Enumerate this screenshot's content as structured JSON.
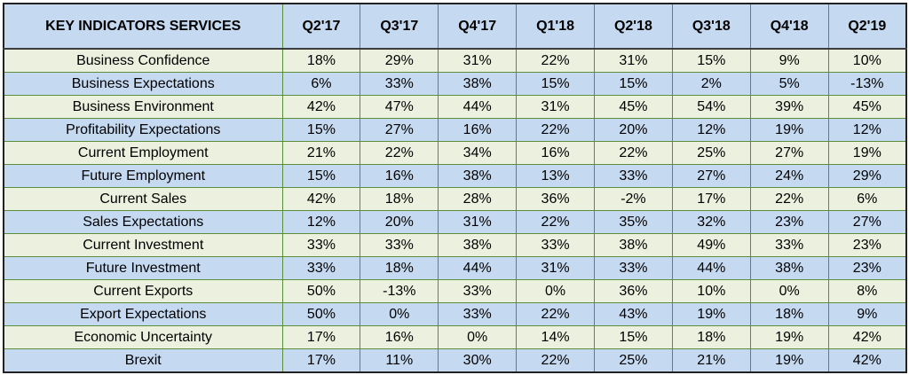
{
  "chart_data": {
    "type": "table",
    "header": [
      "KEY INDICATORS SERVICES",
      "Q2'17",
      "Q3'17",
      "Q4'17",
      "Q1'18",
      "Q2'18",
      "Q3'18",
      "Q4'18",
      "Q2'19"
    ],
    "rows": [
      {
        "label": "Business Confidence",
        "values": [
          "18%",
          "29%",
          "31%",
          "22%",
          "31%",
          "15%",
          "9%",
          "10%"
        ]
      },
      {
        "label": "Business Expectations",
        "values": [
          "6%",
          "33%",
          "38%",
          "15%",
          "15%",
          "2%",
          "5%",
          "-13%"
        ]
      },
      {
        "label": "Business Environment",
        "values": [
          "42%",
          "47%",
          "44%",
          "31%",
          "45%",
          "54%",
          "39%",
          "45%"
        ]
      },
      {
        "label": "Profitability Expectations",
        "values": [
          "15%",
          "27%",
          "16%",
          "22%",
          "20%",
          "12%",
          "19%",
          "12%"
        ]
      },
      {
        "label": "Current Employment",
        "values": [
          "21%",
          "22%",
          "34%",
          "16%",
          "22%",
          "25%",
          "27%",
          "19%"
        ]
      },
      {
        "label": "Future Employment",
        "values": [
          "15%",
          "16%",
          "38%",
          "13%",
          "33%",
          "27%",
          "24%",
          "29%"
        ]
      },
      {
        "label": "Current Sales",
        "values": [
          "42%",
          "18%",
          "28%",
          "36%",
          "-2%",
          "17%",
          "22%",
          "6%"
        ]
      },
      {
        "label": "Sales Expectations",
        "values": [
          "12%",
          "20%",
          "31%",
          "22%",
          "35%",
          "32%",
          "23%",
          "27%"
        ]
      },
      {
        "label": "Current Investment",
        "values": [
          "33%",
          "33%",
          "38%",
          "33%",
          "38%",
          "49%",
          "33%",
          "23%"
        ]
      },
      {
        "label": "Future Investment",
        "values": [
          "33%",
          "18%",
          "44%",
          "31%",
          "33%",
          "44%",
          "38%",
          "23%"
        ]
      },
      {
        "label": "Current Exports",
        "values": [
          "50%",
          "-13%",
          "33%",
          "0%",
          "36%",
          "10%",
          "0%",
          "8%"
        ]
      },
      {
        "label": "Export Expectations",
        "values": [
          "50%",
          "0%",
          "33%",
          "22%",
          "43%",
          "19%",
          "18%",
          "9%"
        ]
      },
      {
        "label": "Economic Uncertainty",
        "values": [
          "17%",
          "16%",
          "0%",
          "14%",
          "15%",
          "18%",
          "19%",
          "42%"
        ]
      },
      {
        "label": "Brexit",
        "values": [
          "17%",
          "11%",
          "30%",
          "22%",
          "25%",
          "21%",
          "19%",
          "42%"
        ]
      }
    ],
    "colors": {
      "header_bg": "#c5d9f1",
      "row_odd_bg": "#ebf1de",
      "row_even_bg": "#c5d9f1",
      "grid_line": "#5a8f3a"
    }
  }
}
